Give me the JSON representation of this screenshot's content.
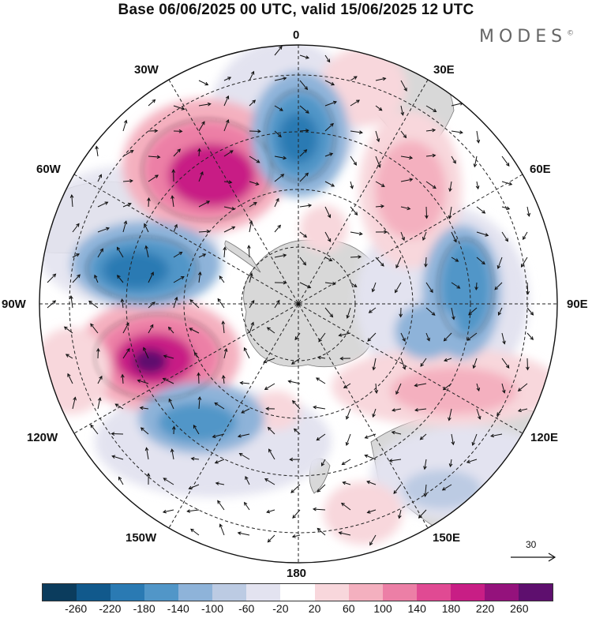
{
  "title": "Base 06/06/2025 00 UTC, valid 15/06/2025 12 UTC",
  "brand": "MODES",
  "brand_mark": "©",
  "longitude_labels": {
    "lon_0": "0",
    "lon_30e": "30E",
    "lon_60e": "60E",
    "lon_90e": "90E",
    "lon_120e": "120E",
    "lon_150e": "150E",
    "lon_180": "180",
    "lon_150w": "150W",
    "lon_120w": "120W",
    "lon_90w": "90W",
    "lon_60w": "60W",
    "lon_30w": "30W"
  },
  "reference_vector": "30",
  "colorbar": {
    "colors": [
      "#0b3c5d",
      "#11598c",
      "#2a7ab3",
      "#5196c8",
      "#8eb3d9",
      "#bccbe3",
      "#e3e3f0",
      "#ffffff",
      "#f8d7dc",
      "#f4b0bf",
      "#ec7fa6",
      "#e04a93",
      "#c81e85",
      "#94127c",
      "#5e0f6e"
    ],
    "labels": [
      "-260",
      "-220",
      "-180",
      "-140",
      "-100",
      "-60",
      "-20",
      "20",
      "60",
      "100",
      "140",
      "180",
      "220",
      "260"
    ]
  },
  "anomaly_colors": {
    "negative_light": "#e3e3f0",
    "negative_mid": "#8eb3d9",
    "negative_strong": "#2a7ab3",
    "positive_light": "#f8d7dc",
    "positive_mid": "#ec7fa6",
    "positive_strong": "#c81e85",
    "positive_extreme": "#5e0f6e",
    "land": "#d8d8d8"
  }
}
